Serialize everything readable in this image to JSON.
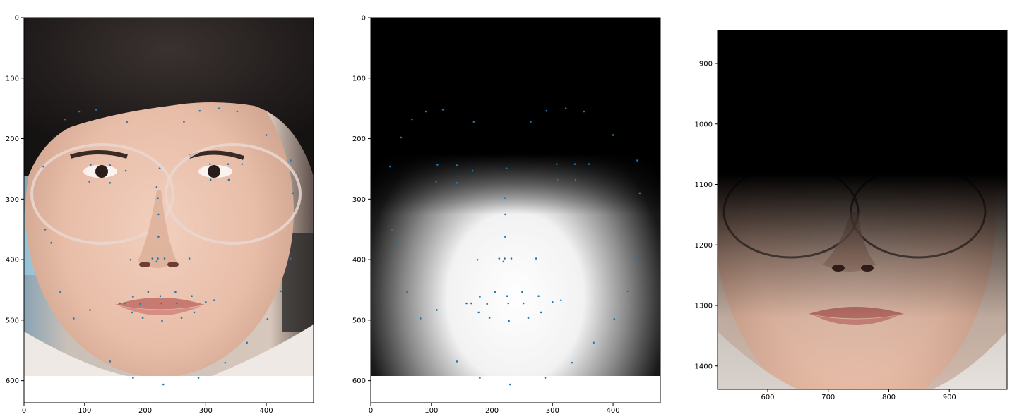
{
  "panels": [
    {
      "id": "face-with-landmarks",
      "x_ticks": [
        "0",
        "100",
        "200",
        "300",
        "400"
      ],
      "y_ticks": [
        "0",
        "100",
        "200",
        "300",
        "400",
        "500",
        "600"
      ]
    },
    {
      "id": "weight-mask-with-landmarks",
      "x_ticks": [
        "0",
        "100",
        "200",
        "300",
        "400"
      ],
      "y_ticks": [
        "0",
        "100",
        "200",
        "300",
        "400",
        "500",
        "600"
      ]
    },
    {
      "id": "masked-face-crop",
      "x_ticks": [
        "600",
        "700",
        "800",
        "900"
      ],
      "y_ticks": [
        "900",
        "1000",
        "1100",
        "1200",
        "1300",
        "1400"
      ]
    }
  ],
  "landmarks": [
    [
      32,
      246
    ],
    [
      50,
      198
    ],
    [
      60,
      453
    ],
    [
      35,
      350
    ],
    [
      45,
      372
    ],
    [
      82,
      497
    ],
    [
      109,
      483
    ],
    [
      142,
      568
    ],
    [
      180,
      595
    ],
    [
      230,
      606
    ],
    [
      288,
      595
    ],
    [
      332,
      570
    ],
    [
      368,
      537
    ],
    [
      402,
      498
    ],
    [
      424,
      452
    ],
    [
      440,
      398
    ],
    [
      444,
      290
    ],
    [
      440,
      236
    ],
    [
      400,
      194
    ],
    [
      68,
      168
    ],
    [
      91,
      155
    ],
    [
      119,
      152
    ],
    [
      170,
      172
    ],
    [
      352,
      155
    ],
    [
      322,
      150
    ],
    [
      290,
      154
    ],
    [
      264,
      172
    ],
    [
      110,
      243
    ],
    [
      108,
      271
    ],
    [
      142,
      244
    ],
    [
      142,
      273
    ],
    [
      168,
      253
    ],
    [
      224,
      249
    ],
    [
      307,
      242
    ],
    [
      337,
      242
    ],
    [
      360,
      242
    ],
    [
      308,
      268
    ],
    [
      338,
      268
    ],
    [
      219,
      280
    ],
    [
      222,
      325
    ],
    [
      222,
      362
    ],
    [
      221,
      298
    ],
    [
      176,
      400
    ],
    [
      212,
      398
    ],
    [
      221,
      398
    ],
    [
      232,
      398
    ],
    [
      273,
      398
    ],
    [
      180,
      461
    ],
    [
      205,
      453
    ],
    [
      225,
      460
    ],
    [
      250,
      453
    ],
    [
      277,
      460
    ],
    [
      178,
      487
    ],
    [
      196,
      496
    ],
    [
      228,
      501
    ],
    [
      260,
      496
    ],
    [
      281,
      487
    ],
    [
      158,
      472
    ],
    [
      166,
      472
    ],
    [
      192,
      473
    ],
    [
      227,
      472
    ],
    [
      252,
      472
    ],
    [
      300,
      470
    ],
    [
      314,
      467
    ],
    [
      219,
      403
    ]
  ]
}
